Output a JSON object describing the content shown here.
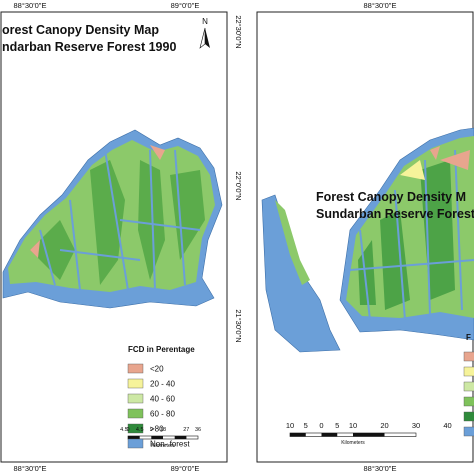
{
  "left_panel": {
    "title_lines": [
      "orest Canopy Density Map",
      "ndarban Reserve Forest 1990"
    ],
    "north": "N",
    "top_labels": [
      "88°30'0\"E",
      "89°0'0\"E"
    ],
    "bottom_labels": [
      "88°30'0\"E",
      "89°0'0\"E"
    ],
    "lat_labels": [
      "22°30'0\"N",
      "22°0'0\"N",
      "21°30'0\"N"
    ],
    "legend": {
      "title": "FCD in Perentage",
      "items": [
        {
          "label": "<20",
          "color": "#e8a58e"
        },
        {
          "label": "20 - 40",
          "color": "#f6f39a"
        },
        {
          "label": "40 - 60",
          "color": "#cde8a4"
        },
        {
          "label": "60 - 80",
          "color": "#7fc25b"
        },
        {
          "label": ">80",
          "color": "#2f8a3b"
        },
        {
          "label": "Non- forest",
          "color": "#6b9fd8"
        }
      ]
    },
    "scale": {
      "labels": [
        "4.5",
        "0",
        "4.5",
        "9",
        "18",
        "27",
        "36"
      ],
      "unit": "Kilometers"
    }
  },
  "right_panel": {
    "title_lines": [
      "Forest Canopy Density M",
      "Sundarban Reserve Forest"
    ],
    "top_labels": [
      "88°30'0\"E"
    ],
    "bottom_labels": [
      "88°30'0\"E"
    ],
    "legend": {
      "title": "F"
    },
    "scale": {
      "labels": [
        "10",
        "5",
        "0",
        "5",
        "10",
        "20",
        "30",
        "40"
      ],
      "unit": "Kilometers"
    }
  }
}
